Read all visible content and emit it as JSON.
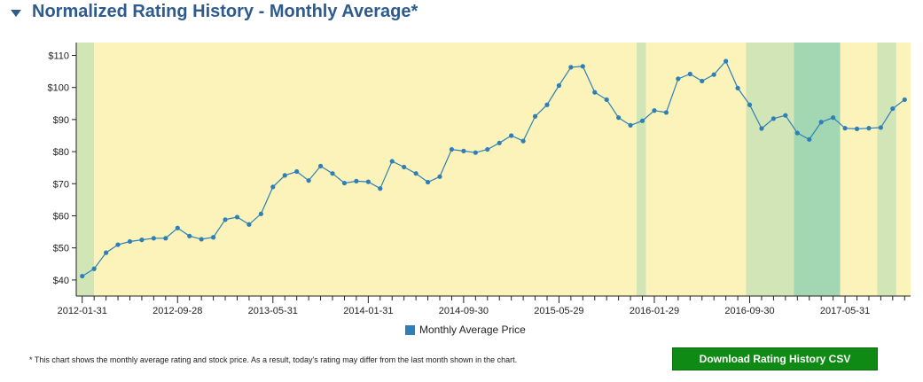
{
  "header": {
    "title": "Normalized Rating History - Monthly Average*",
    "caret_icon": "caret-down-icon"
  },
  "colors": {
    "title": "#2e5b8f",
    "line": "#2e7fb8",
    "band_yellow": "#fbf3b9",
    "band_light_green": "#d2e5b7",
    "band_green": "#a3d7b3",
    "button": "#0f8a15"
  },
  "chart_data": {
    "type": "line",
    "title": "",
    "xlabel": "",
    "ylabel": "",
    "ylim": [
      35,
      114
    ],
    "y_ticks": [
      40,
      50,
      60,
      70,
      80,
      90,
      100,
      110
    ],
    "y_tick_labels": [
      "$40",
      "$50",
      "$60",
      "$70",
      "$80",
      "$90",
      "$100",
      "$110"
    ],
    "x_tick_labels": [
      "2012-01-31",
      "2012-09-28",
      "2013-05-31",
      "2014-01-31",
      "2014-09-30",
      "2015-05-29",
      "2016-01-29",
      "2016-09-30",
      "2017-05-31"
    ],
    "x_tick_months": [
      0,
      8,
      16,
      24,
      32,
      40,
      48,
      56,
      64
    ],
    "x_range_months": [
      -0.5,
      69.5
    ],
    "rating_bands": [
      {
        "rating": "light_green",
        "from": -0.5,
        "to": 1
      },
      {
        "rating": "yellow",
        "from": 1,
        "to": 46.5
      },
      {
        "rating": "light_green",
        "from": 46.5,
        "to": 47.3
      },
      {
        "rating": "yellow",
        "from": 47.3,
        "to": 55.7
      },
      {
        "rating": "light_green",
        "from": 55.7,
        "to": 59.7
      },
      {
        "rating": "green",
        "from": 59.7,
        "to": 63.6
      },
      {
        "rating": "yellow",
        "from": 63.6,
        "to": 66.7
      },
      {
        "rating": "light_green",
        "from": 66.7,
        "to": 68.3
      },
      {
        "rating": "yellow",
        "from": 68.3,
        "to": 69.5
      }
    ],
    "series": [
      {
        "name": "Monthly Average Price",
        "values": [
          41.2,
          43.5,
          48.5,
          51.0,
          52.0,
          52.5,
          53.0,
          53.0,
          56.2,
          53.7,
          52.7,
          53.3,
          58.8,
          59.6,
          57.3,
          60.6,
          69.0,
          72.6,
          73.8,
          71.0,
          75.5,
          73.2,
          70.2,
          70.8,
          70.6,
          68.5,
          77.0,
          75.2,
          73.2,
          70.5,
          72.2,
          80.7,
          80.2,
          79.7,
          80.7,
          82.7,
          85.0,
          83.3,
          91.0,
          94.6,
          100.6,
          106.3,
          106.6,
          98.5,
          96.2,
          90.6,
          88.2,
          89.6,
          92.8,
          92.2,
          102.7,
          104.2,
          102.0,
          104.0,
          108.2,
          99.8,
          94.6,
          87.2,
          90.3,
          91.3,
          85.8,
          83.8,
          89.2,
          90.6,
          87.3,
          87.1,
          87.3,
          87.5,
          93.4,
          96.2
        ]
      }
    ]
  },
  "legend": {
    "label": "Monthly Average Price"
  },
  "footnote": "* This chart shows the monthly average rating and stock price. As a result, today's rating may differ from the last month shown in the chart.",
  "download_button": {
    "label": "Download Rating History CSV"
  }
}
